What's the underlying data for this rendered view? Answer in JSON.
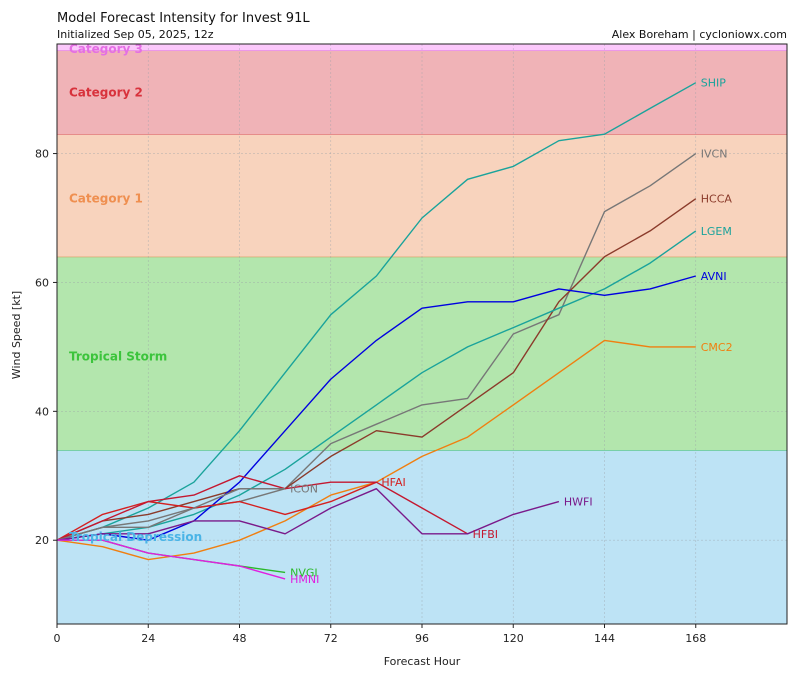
{
  "chart_data": {
    "type": "line",
    "title": "Model Forecast Intensity for Invest 91L",
    "subtitle": "Initialized Sep 05, 2025, 12z",
    "credit": "Alex Boreham | cycloniowx.com",
    "xlabel": "Forecast Hour",
    "ylabel": "Wind Speed [kt]",
    "xlim": [
      0,
      192
    ],
    "ylim": [
      7,
      97
    ],
    "xticks": [
      0,
      24,
      48,
      72,
      96,
      120,
      144,
      168
    ],
    "yticks": [
      20,
      40,
      60,
      80
    ],
    "grid": true,
    "bands": [
      {
        "name": "Tropical Depression",
        "from": 7,
        "to": 34,
        "fill": "#bde3f5",
        "edge": "#4fc37a",
        "label_color": "#4ab4e6",
        "label_y": 20.5
      },
      {
        "name": "Tropical Storm",
        "from": 34,
        "to": 64,
        "fill": "#b3e6ad",
        "edge": "#d39a5a",
        "label_color": "#3cc43c",
        "label_y": 48.5
      },
      {
        "name": "Category 1",
        "from": 64,
        "to": 83,
        "fill": "#f8d3bd",
        "edge": "#e07070",
        "label_color": "#ef8f50",
        "label_y": 73
      },
      {
        "name": "Category 2",
        "from": 83,
        "to": 96,
        "fill": "#f0b3b7",
        "edge": "#e070d8",
        "label_color": "#d8323c",
        "label_y": 89.5
      },
      {
        "name": "Category 3",
        "from": 96,
        "to": 97,
        "fill": "#fbc8fb",
        "edge": "#e070d8",
        "label_color": "#e46fe4",
        "label_y": 96.2
      }
    ],
    "series": [
      {
        "name": "SHIP",
        "color": "#1aa39b",
        "x": [
          0,
          12,
          24,
          36,
          48,
          60,
          72,
          84,
          96,
          108,
          120,
          132,
          144,
          156,
          168
        ],
        "y": [
          20,
          22,
          25,
          29,
          37,
          46,
          55,
          61,
          70,
          76,
          78,
          82,
          83,
          87,
          91
        ]
      },
      {
        "name": "IVCN",
        "color": "#777777",
        "x": [
          0,
          12,
          24,
          36,
          48,
          60,
          72,
          84,
          96,
          108,
          120,
          132,
          144,
          156,
          168
        ],
        "y": [
          20,
          22,
          23,
          25,
          26,
          28,
          35,
          38,
          41,
          42,
          52,
          55,
          71,
          75,
          80
        ]
      },
      {
        "name": "HCCA",
        "color": "#8b3b2b",
        "x": [
          0,
          12,
          24,
          36,
          48,
          60,
          72,
          84,
          96,
          108,
          120,
          132,
          144,
          156,
          168
        ],
        "y": [
          20,
          23,
          24,
          26,
          28,
          28,
          33,
          37,
          36,
          41,
          46,
          57,
          64,
          68,
          73
        ]
      },
      {
        "name": "LGEM",
        "color": "#1aa39b",
        "x": [
          0,
          12,
          24,
          36,
          48,
          60,
          72,
          84,
          96,
          108,
          120,
          132,
          144,
          156,
          168
        ],
        "y": [
          20,
          21,
          22,
          24,
          27,
          31,
          36,
          41,
          46,
          50,
          53,
          56,
          59,
          63,
          68
        ]
      },
      {
        "name": "AVNI",
        "color": "#0000e0",
        "x": [
          0,
          12,
          24,
          36,
          48,
          60,
          72,
          84,
          96,
          108,
          120,
          132,
          144,
          156,
          168
        ],
        "y": [
          20,
          21,
          20,
          23,
          29,
          37,
          45,
          51,
          56,
          57,
          57,
          59,
          58,
          59,
          61
        ]
      },
      {
        "name": "CMC2",
        "color": "#f07f10",
        "x": [
          0,
          12,
          24,
          36,
          48,
          60,
          72,
          84,
          96,
          108,
          120,
          132,
          144,
          156,
          168
        ],
        "y": [
          20,
          19,
          17,
          18,
          20,
          23,
          27,
          29,
          33,
          36,
          41,
          46,
          51,
          50,
          50
        ]
      },
      {
        "name": "HFAI",
        "color": "#d42020",
        "x": [
          0,
          12,
          24,
          36,
          48,
          60,
          72,
          84
        ],
        "y": [
          20,
          24,
          26,
          25,
          26,
          24,
          26,
          29
        ]
      },
      {
        "name": "HFBI",
        "color": "#c41830",
        "x": [
          0,
          12,
          24,
          36,
          48,
          60,
          72,
          84,
          96,
          108
        ],
        "y": [
          20,
          23,
          26,
          27,
          30,
          28,
          29,
          29,
          25,
          21
        ]
      },
      {
        "name": "ICON",
        "color": "#777777",
        "x": [
          0,
          12,
          24,
          36,
          48,
          60
        ],
        "y": [
          20,
          22,
          22,
          25,
          28,
          28
        ]
      },
      {
        "name": "HWFI",
        "color": "#7a1a8a",
        "x": [
          0,
          12,
          24,
          36,
          48,
          60,
          72,
          84,
          96,
          108,
          120,
          132
        ],
        "y": [
          20,
          21,
          21,
          23,
          23,
          21,
          25,
          28,
          21,
          21,
          24,
          26
        ]
      },
      {
        "name": "NVGI",
        "color": "#2ab82a",
        "x": [
          0,
          12,
          24,
          36,
          48,
          60
        ],
        "y": [
          20,
          20,
          18,
          17,
          16,
          15
        ]
      },
      {
        "name": "HMNI",
        "color": "#e020e0",
        "x": [
          0,
          12,
          24,
          36,
          48,
          60
        ],
        "y": [
          20,
          20,
          18,
          17,
          16,
          14
        ]
      }
    ]
  }
}
